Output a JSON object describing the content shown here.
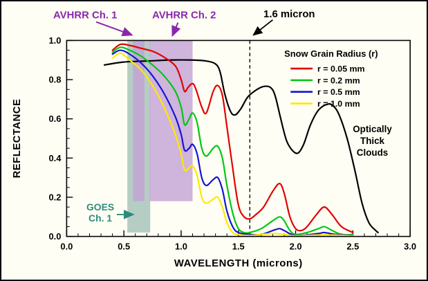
{
  "figure": {
    "background": "#fffef4",
    "border_color": "#000000"
  },
  "chart_data": {
    "type": "line",
    "title": "",
    "xlabel": "WAVELENGTH (microns)",
    "ylabel": "REFLECTANCE",
    "xlim": [
      0.0,
      3.0
    ],
    "ylim": [
      0.0,
      1.0
    ],
    "grid": false,
    "x_minor_step": 0.1,
    "y_minor_step": 0.05,
    "x_ticks": [
      {
        "value": 0.0,
        "label": "0.0"
      },
      {
        "value": 0.5,
        "label": "0.5"
      },
      {
        "value": 1.0,
        "label": "1.0"
      },
      {
        "value": 1.5,
        "label": "1.5"
      },
      {
        "value": 2.0,
        "label": "2.0"
      },
      {
        "value": 2.5,
        "label": "2.5"
      },
      {
        "value": 3.0,
        "label": "3.0"
      }
    ],
    "y_ticks": [
      {
        "value": 0.0,
        "label": "0.0"
      },
      {
        "value": 0.2,
        "label": "0.2"
      },
      {
        "value": 0.4,
        "label": "0.4"
      },
      {
        "value": 0.6,
        "label": "0.6"
      },
      {
        "value": 0.8,
        "label": "0.8"
      },
      {
        "value": 1.0,
        "label": "1.0"
      }
    ],
    "legend": {
      "title": "Snow Grain Radius (r)",
      "position": "upper right",
      "entries": [
        {
          "label": "r = 0.05 mm",
          "color": "#e10000"
        },
        {
          "label": "r = 0.2 mm",
          "color": "#00c614"
        },
        {
          "label": "r = 0.5 mm",
          "color": "#1414d2"
        },
        {
          "label": "r = 1.0 mm",
          "color": "#ffe800"
        }
      ]
    },
    "bands": [
      {
        "name": "goes-ch1-band",
        "x0": 0.53,
        "x1": 0.73,
        "y0": 0.02,
        "y1": 1.0,
        "color": "#a9c4ba",
        "opacity": 0.85
      },
      {
        "name": "avhrr-ch1-band",
        "x0": 0.58,
        "x1": 0.68,
        "y0": 0.18,
        "y1": 1.0,
        "color": "#c3a1d6",
        "opacity": 0.8
      },
      {
        "name": "avhrr-ch2-band",
        "x0": 0.725,
        "x1": 1.1,
        "y0": 0.18,
        "y1": 1.0,
        "color": "#c3a1d6",
        "opacity": 0.8
      }
    ],
    "vline": {
      "x": 1.6,
      "style": "dashed",
      "color": "#000000"
    },
    "annotations": {
      "avhrr_ch1": {
        "text": "AVHRR Ch. 1",
        "color": "#8927ae"
      },
      "avhrr_ch2": {
        "text": "AVHRR Ch. 2",
        "color": "#8927ae"
      },
      "micron_16": {
        "text": "1.6 micron",
        "color": "#000000"
      },
      "goes_ch1": {
        "line1": "GOES",
        "line2": "Ch. 1",
        "color": "#2e8b7a"
      },
      "clouds": {
        "line1": "Optically",
        "line2": "Thick",
        "line3": "Clouds",
        "color": "#000000"
      }
    },
    "series": [
      {
        "name": "Optically Thick Clouds",
        "color": "#000000",
        "points": [
          [
            0.33,
            0.875
          ],
          [
            0.5,
            0.89
          ],
          [
            0.7,
            0.895
          ],
          [
            0.9,
            0.9
          ],
          [
            1.1,
            0.9
          ],
          [
            1.22,
            0.895
          ],
          [
            1.3,
            0.88
          ],
          [
            1.34,
            0.84
          ],
          [
            1.38,
            0.73
          ],
          [
            1.43,
            0.64
          ],
          [
            1.47,
            0.62
          ],
          [
            1.52,
            0.65
          ],
          [
            1.58,
            0.71
          ],
          [
            1.65,
            0.745
          ],
          [
            1.72,
            0.765
          ],
          [
            1.78,
            0.76
          ],
          [
            1.82,
            0.72
          ],
          [
            1.87,
            0.6
          ],
          [
            1.92,
            0.49
          ],
          [
            1.97,
            0.44
          ],
          [
            2.02,
            0.425
          ],
          [
            2.07,
            0.47
          ],
          [
            2.13,
            0.57
          ],
          [
            2.2,
            0.645
          ],
          [
            2.28,
            0.675
          ],
          [
            2.33,
            0.665
          ],
          [
            2.38,
            0.62
          ],
          [
            2.45,
            0.5
          ],
          [
            2.52,
            0.33
          ],
          [
            2.58,
            0.17
          ],
          [
            2.64,
            0.07
          ],
          [
            2.7,
            0.03
          ],
          [
            2.72,
            0.02
          ]
        ]
      },
      {
        "name": "r = 0.05 mm",
        "color": "#e10000",
        "points": [
          [
            0.4,
            0.95
          ],
          [
            0.47,
            0.98
          ],
          [
            0.55,
            0.975
          ],
          [
            0.65,
            0.96
          ],
          [
            0.75,
            0.945
          ],
          [
            0.85,
            0.915
          ],
          [
            0.95,
            0.87
          ],
          [
            1.0,
            0.8
          ],
          [
            1.03,
            0.74
          ],
          [
            1.06,
            0.76
          ],
          [
            1.1,
            0.78
          ],
          [
            1.13,
            0.75
          ],
          [
            1.18,
            0.66
          ],
          [
            1.22,
            0.63
          ],
          [
            1.28,
            0.74
          ],
          [
            1.32,
            0.77
          ],
          [
            1.36,
            0.72
          ],
          [
            1.4,
            0.56
          ],
          [
            1.45,
            0.35
          ],
          [
            1.5,
            0.16
          ],
          [
            1.55,
            0.1
          ],
          [
            1.6,
            0.09
          ],
          [
            1.65,
            0.11
          ],
          [
            1.72,
            0.15
          ],
          [
            1.8,
            0.23
          ],
          [
            1.86,
            0.27
          ],
          [
            1.9,
            0.22
          ],
          [
            1.95,
            0.1
          ],
          [
            2.0,
            0.04
          ],
          [
            2.05,
            0.03
          ],
          [
            2.1,
            0.05
          ],
          [
            2.18,
            0.11
          ],
          [
            2.25,
            0.15
          ],
          [
            2.32,
            0.11
          ],
          [
            2.4,
            0.05
          ],
          [
            2.5,
            0.02
          ]
        ]
      },
      {
        "name": "r = 0.2 mm",
        "color": "#00c614",
        "points": [
          [
            0.4,
            0.94
          ],
          [
            0.47,
            0.965
          ],
          [
            0.55,
            0.95
          ],
          [
            0.65,
            0.92
          ],
          [
            0.75,
            0.875
          ],
          [
            0.85,
            0.82
          ],
          [
            0.95,
            0.74
          ],
          [
            1.0,
            0.66
          ],
          [
            1.03,
            0.57
          ],
          [
            1.07,
            0.6
          ],
          [
            1.1,
            0.63
          ],
          [
            1.14,
            0.58
          ],
          [
            1.18,
            0.45
          ],
          [
            1.22,
            0.41
          ],
          [
            1.28,
            0.45
          ],
          [
            1.32,
            0.46
          ],
          [
            1.36,
            0.4
          ],
          [
            1.4,
            0.26
          ],
          [
            1.45,
            0.12
          ],
          [
            1.5,
            0.04
          ],
          [
            1.55,
            0.02
          ],
          [
            1.6,
            0.02
          ],
          [
            1.7,
            0.04
          ],
          [
            1.8,
            0.08
          ],
          [
            1.86,
            0.1
          ],
          [
            1.9,
            0.08
          ],
          [
            1.95,
            0.03
          ],
          [
            2.0,
            0.01
          ],
          [
            2.1,
            0.02
          ],
          [
            2.2,
            0.04
          ],
          [
            2.25,
            0.05
          ],
          [
            2.32,
            0.03
          ],
          [
            2.4,
            0.01
          ],
          [
            2.5,
            0.01
          ]
        ]
      },
      {
        "name": "r = 0.5 mm",
        "color": "#1414d2",
        "points": [
          [
            0.4,
            0.93
          ],
          [
            0.47,
            0.95
          ],
          [
            0.55,
            0.93
          ],
          [
            0.65,
            0.885
          ],
          [
            0.75,
            0.82
          ],
          [
            0.85,
            0.73
          ],
          [
            0.95,
            0.61
          ],
          [
            1.0,
            0.52
          ],
          [
            1.03,
            0.44
          ],
          [
            1.07,
            0.45
          ],
          [
            1.1,
            0.47
          ],
          [
            1.14,
            0.42
          ],
          [
            1.18,
            0.3
          ],
          [
            1.22,
            0.26
          ],
          [
            1.28,
            0.29
          ],
          [
            1.32,
            0.3
          ],
          [
            1.36,
            0.24
          ],
          [
            1.4,
            0.13
          ],
          [
            1.45,
            0.05
          ],
          [
            1.5,
            0.02
          ],
          [
            1.6,
            0.01
          ],
          [
            1.7,
            0.01
          ],
          [
            1.8,
            0.03
          ],
          [
            1.86,
            0.04
          ],
          [
            1.9,
            0.03
          ],
          [
            2.0,
            0.005
          ],
          [
            2.2,
            0.015
          ],
          [
            2.25,
            0.02
          ],
          [
            2.35,
            0.01
          ],
          [
            2.5,
            0.005
          ]
        ]
      },
      {
        "name": "r = 1.0 mm",
        "color": "#ffe800",
        "points": [
          [
            0.4,
            0.91
          ],
          [
            0.47,
            0.935
          ],
          [
            0.55,
            0.9
          ],
          [
            0.65,
            0.85
          ],
          [
            0.75,
            0.77
          ],
          [
            0.85,
            0.66
          ],
          [
            0.95,
            0.52
          ],
          [
            1.0,
            0.42
          ],
          [
            1.03,
            0.34
          ],
          [
            1.07,
            0.35
          ],
          [
            1.1,
            0.36
          ],
          [
            1.14,
            0.31
          ],
          [
            1.18,
            0.2
          ],
          [
            1.22,
            0.17
          ],
          [
            1.28,
            0.19
          ],
          [
            1.32,
            0.2
          ],
          [
            1.36,
            0.15
          ],
          [
            1.4,
            0.07
          ],
          [
            1.45,
            0.02
          ],
          [
            1.5,
            0.01
          ],
          [
            1.6,
            0.005
          ],
          [
            1.8,
            0.015
          ],
          [
            1.9,
            0.01
          ],
          [
            2.0,
            0.003
          ],
          [
            2.25,
            0.008
          ],
          [
            2.5,
            0.003
          ]
        ]
      }
    ]
  }
}
